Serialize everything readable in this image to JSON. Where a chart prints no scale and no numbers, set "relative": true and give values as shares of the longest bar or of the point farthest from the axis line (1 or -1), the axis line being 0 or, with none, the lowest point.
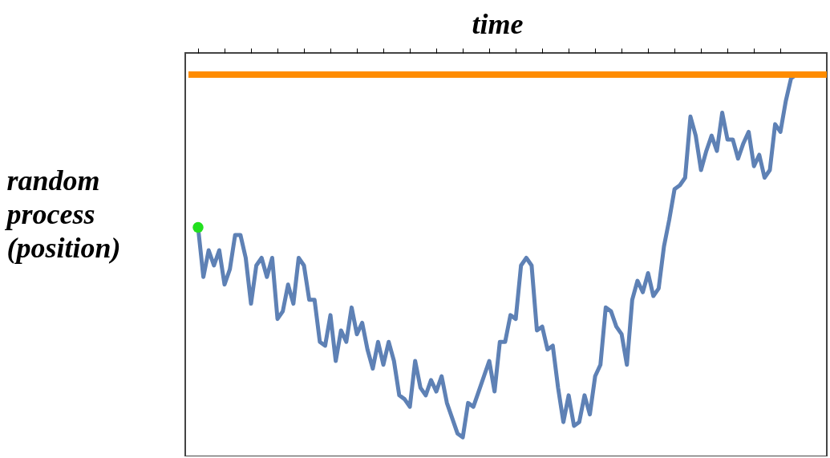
{
  "chart_data": {
    "type": "line",
    "xlabel": "time",
    "ylabel": "random process (position)",
    "relative": true,
    "categories": [
      null,
      null,
      null,
      null,
      null,
      null,
      null,
      null,
      null,
      null,
      null,
      null,
      null,
      null,
      null,
      null,
      null,
      null,
      null,
      null,
      null,
      null,
      null,
      null,
      null,
      null,
      null,
      null,
      null,
      null,
      null,
      null,
      null,
      null,
      null,
      null,
      null,
      null,
      null,
      null,
      null,
      null,
      null,
      null,
      null,
      null,
      null,
      null,
      null,
      null,
      null,
      null,
      null,
      null,
      null,
      null,
      null,
      null,
      null,
      null,
      null,
      null,
      null,
      null,
      null,
      null,
      null,
      null,
      null,
      null,
      null,
      null,
      null,
      null,
      null,
      null,
      null,
      null,
      null,
      null,
      null,
      null,
      null,
      null,
      null,
      null,
      null,
      null,
      null,
      null,
      null,
      null,
      null,
      null,
      null,
      null,
      null,
      null,
      null,
      null,
      null,
      null,
      null,
      null,
      null,
      null,
      null,
      null,
      null,
      null,
      null,
      null,
      null,
      null
    ],
    "series": [
      {
        "color": "#5e81b5",
        "values": [
          0.6,
          0.47,
          0.54,
          0.5,
          0.54,
          0.45,
          0.49,
          0.58,
          0.58,
          0.52,
          0.4,
          0.5,
          0.52,
          0.47,
          0.52,
          0.36,
          0.38,
          0.45,
          0.4,
          0.52,
          0.5,
          0.41,
          0.41,
          0.3,
          0.29,
          0.37,
          0.25,
          0.33,
          0.3,
          0.39,
          0.32,
          0.35,
          0.28,
          0.23,
          0.3,
          0.24,
          0.3,
          0.25,
          0.16,
          0.15,
          0.13,
          0.25,
          0.18,
          0.16,
          0.2,
          0.17,
          0.21,
          0.14,
          0.1,
          0.06,
          0.05,
          0.14,
          0.13,
          0.17,
          0.21,
          0.25,
          0.17,
          0.3,
          0.3,
          0.37,
          0.36,
          0.5,
          0.52,
          0.5,
          0.33,
          0.34,
          0.28,
          0.29,
          0.18,
          0.09,
          0.16,
          0.08,
          0.09,
          0.16,
          0.11,
          0.21,
          0.24,
          0.39,
          0.38,
          0.34,
          0.32,
          0.24,
          0.41,
          0.46,
          0.43,
          0.48,
          0.42,
          0.44,
          0.55,
          0.62,
          0.7,
          0.71,
          0.73,
          0.89,
          0.84,
          0.75,
          0.8,
          0.84,
          0.8,
          0.9,
          0.83,
          0.83,
          0.78,
          0.82,
          0.85,
          0.76,
          0.79,
          0.73,
          0.75,
          0.87,
          0.85,
          0.93,
          0.99,
          1
        ]
      }
    ],
    "ref_lines": [
      {
        "axis": "y",
        "value": 1,
        "color": "#ff8c00"
      }
    ],
    "marker": "none"
  }
}
